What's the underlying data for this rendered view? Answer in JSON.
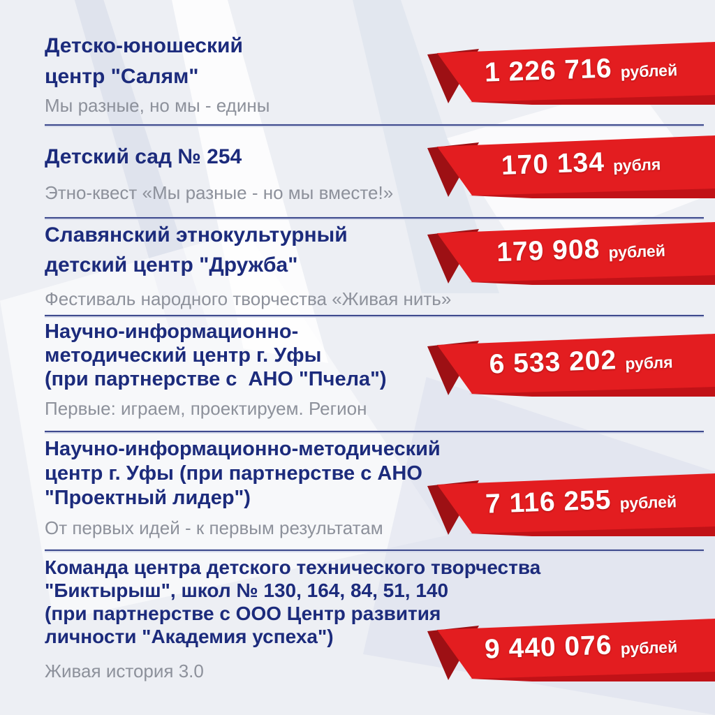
{
  "poster": {
    "colors": {
      "background": "#edeff4",
      "title": "#1c2b7c",
      "subtitle": "#8d919b",
      "separator": "#3e4a8d",
      "ribbon_red": "#e31d20",
      "ribbon_fold_dark": "#9d1014",
      "ribbon_shadow": "#c11217"
    },
    "entries": [
      {
        "title_lines": [
          "Детско-юношеский",
          "центр \"Салям\""
        ],
        "subtitle": "Мы разные, но мы - едины",
        "amount": "1 226 716",
        "currency": "рублей"
      },
      {
        "title_lines": [
          "Детский сад № 254"
        ],
        "subtitle": "Этно-квест «Мы разные - но мы вместе!»",
        "amount": "170 134",
        "currency": "рубля"
      },
      {
        "title_lines": [
          "Славянский этнокультурный",
          "детский центр \"Дружба\""
        ],
        "subtitle": "Фестиваль народного творчества «Живая нить»",
        "amount": "179 908",
        "currency": "рублей"
      },
      {
        "title_lines": [
          "Научно-информационно-",
          "методический центр г. Уфы",
          "(при партнерстве с  АНО \"Пчела\")"
        ],
        "subtitle": "Первые: играем, проектируем. Регион",
        "amount": "6 533 202",
        "currency": "рубля"
      },
      {
        "title_lines": [
          "Научно-информационно-методический",
          "центр г. Уфы (при партнерстве с АНО",
          "\"Проектный лидер\")"
        ],
        "subtitle": "От первых идей - к первым результатам",
        "amount": "7 116 255",
        "currency": "рублей"
      },
      {
        "title_lines": [
          "Команда центра детского технического творчества",
          "\"Биктырыш\", школ № 130, 164, 84, 51, 140",
          "(при партнерстве с ООО Центр развития",
          "личности \"Академия успеха\")"
        ],
        "subtitle": "Живая история 3.0",
        "amount": "9 440 076",
        "currency": "рублей"
      }
    ]
  }
}
